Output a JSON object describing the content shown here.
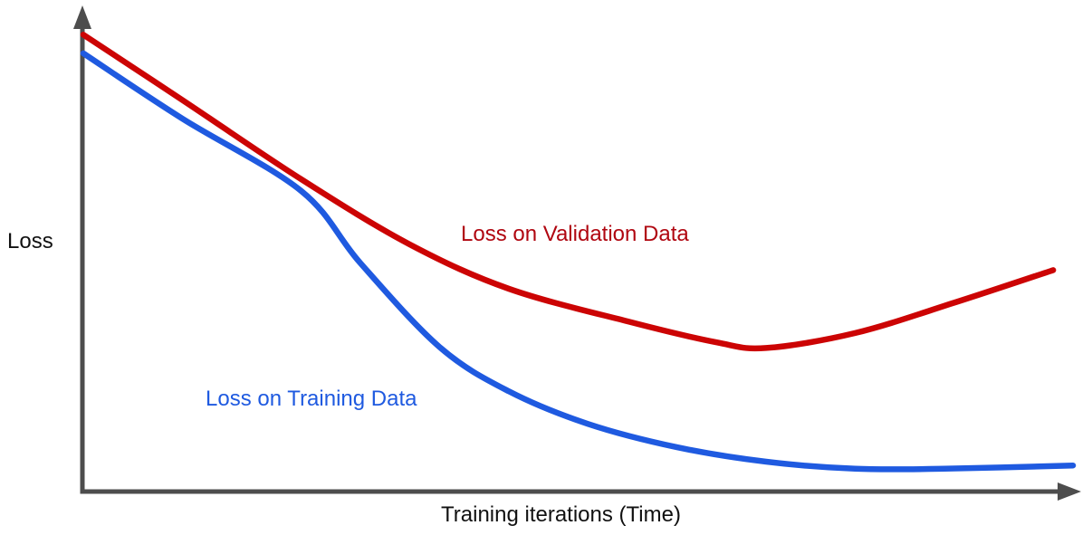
{
  "page": {
    "background": "#ffffff"
  },
  "chart_data": {
    "type": "line",
    "title": "",
    "xlabel": "Training iterations (Time)",
    "ylabel": "Loss",
    "xlim": [
      0,
      100
    ],
    "ylim": [
      0,
      1
    ],
    "grid": false,
    "legend_position": "inline-annotations",
    "axes_color": "#4d4d4d",
    "series": [
      {
        "name": "Loss on Validation Data",
        "color": "#cc0404",
        "label_color": "#b00610",
        "x": [
          0,
          10,
          22,
          33,
          43,
          55,
          64,
          69,
          78,
          88,
          98
        ],
        "y": [
          0.98,
          0.84,
          0.67,
          0.53,
          0.435,
          0.365,
          0.32,
          0.308,
          0.34,
          0.405,
          0.475
        ]
      },
      {
        "name": "Loss on Training Data",
        "color": "#1f5ae0",
        "label_color": "#1f5ae0",
        "x": [
          0,
          10,
          22,
          28,
          36,
          43,
          51,
          60,
          69,
          78,
          87,
          100
        ],
        "y": [
          0.94,
          0.8,
          0.645,
          0.49,
          0.31,
          0.215,
          0.145,
          0.095,
          0.064,
          0.049,
          0.049,
          0.056
        ]
      }
    ]
  }
}
